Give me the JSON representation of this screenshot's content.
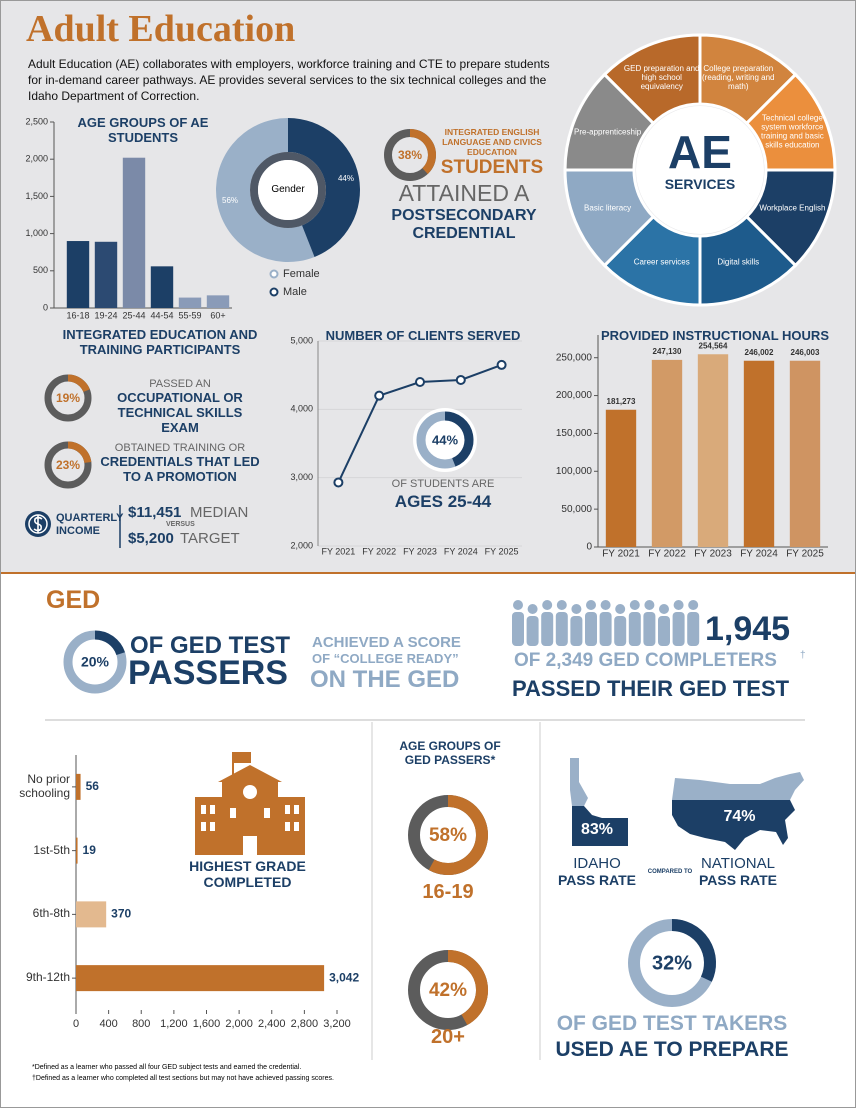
{
  "header": {
    "title": "Adult Education",
    "intro": "Adult Education (AE) collaborates with employers, workforce training and CTE to prepare students for in-demand career pathways. AE provides several services to the six technical colleges and the Idaho Department of Correction."
  },
  "chart_data": [
    {
      "type": "bar",
      "title": "AGE GROUPS OF AE STUDENTS",
      "categories": [
        "16-18",
        "19-24",
        "25-44",
        "44-54",
        "55-59",
        "60+"
      ],
      "values": [
        900,
        890,
        2020,
        560,
        140,
        170
      ],
      "colors": [
        "#1c3f66",
        "#2c4a72",
        "#7b8aa8",
        "#1c3f66",
        "#8a9bb8",
        "#8a9bb8"
      ],
      "ylim": [
        0,
        2500
      ],
      "yticks": [
        0,
        500,
        {
          "value": 1000,
          "label": "1,000"
        },
        {
          "value": 1500,
          "label": "1,500"
        },
        {
          "value": 2000,
          "label": "2,000"
        },
        {
          "value": 2500,
          "label": "2,500"
        }
      ]
    },
    {
      "type": "pie",
      "title": "Gender",
      "categories": [
        "Female",
        "Male"
      ],
      "values": [
        56,
        44
      ],
      "value_labels": [
        "56%",
        "44%"
      ],
      "colors": [
        "#9ab0c8",
        "#1c3f66"
      ]
    },
    {
      "type": "ring",
      "values": [
        38
      ],
      "value_labels": [
        "38%"
      ],
      "ylim": [
        0,
        100
      ],
      "color": "#c0712b",
      "track_color": "#5c5c5c"
    },
    {
      "type": "ring",
      "values": [
        19
      ],
      "value_labels": [
        "19%"
      ],
      "ylim": [
        0,
        100
      ],
      "color": "#c0712b",
      "track_color": "#5c5c5c"
    },
    {
      "type": "ring",
      "values": [
        23
      ],
      "value_labels": [
        "23%"
      ],
      "ylim": [
        0,
        100
      ],
      "color": "#c0712b",
      "track_color": "#5c5c5c"
    },
    {
      "type": "line",
      "title": "NUMBER OF CLIENTS SERVED",
      "categories": [
        "FY 2021",
        "FY 2022",
        "FY 2023",
        "FY 2024",
        "FY 2025"
      ],
      "values": [
        2930,
        4200,
        4400,
        4430,
        4650
      ],
      "color": "#1c3f66",
      "ylim": [
        2000,
        5000
      ],
      "yticks": [
        {
          "value": 2000,
          "label": "2,000"
        },
        {
          "value": 3000,
          "label": "3,000"
        },
        {
          "value": 4000,
          "label": "4,000"
        },
        {
          "value": 5000,
          "label": "5,000"
        }
      ],
      "grid": true
    },
    {
      "type": "ring",
      "values": [
        44
      ],
      "value_labels": [
        "44%"
      ],
      "ylim": [
        0,
        100
      ],
      "color": "#1c3f66",
      "track_color": "#9ab0c8"
    },
    {
      "type": "bar",
      "title": "PROVIDED INSTRUCTIONAL HOURS",
      "categories": [
        "FY 2021",
        "FY 2022",
        "FY 2023",
        "FY 2024",
        "FY 2025"
      ],
      "values": [
        181273,
        247130,
        254564,
        246002,
        246003
      ],
      "value_labels": [
        "181,273",
        "247,130",
        "254,564",
        "246,002",
        "246,003"
      ],
      "colors": [
        "#c0712b",
        "#d29a66",
        "#d9aa7a",
        "#c0712b",
        "#cf9462"
      ],
      "ylim": [
        0,
        280000
      ],
      "yticks": [
        0,
        {
          "value": 50000,
          "label": "50,000"
        },
        {
          "value": 100000,
          "label": "100,000"
        },
        {
          "value": 150000,
          "label": "150,000"
        },
        {
          "value": 200000,
          "label": "200,000"
        },
        {
          "value": 250000,
          "label": "250,000"
        }
      ]
    },
    {
      "type": "ring",
      "values": [
        20
      ],
      "value_labels": [
        "20%"
      ],
      "ylim": [
        0,
        100
      ],
      "color": "#1c3f66",
      "track_color": "#9ab0c8"
    },
    {
      "type": "hbar",
      "title": "HIGHEST GRADE COMPLETED",
      "categories": [
        "No prior schooling",
        "1st-5th",
        "6th-8th",
        "9th-12th"
      ],
      "values": [
        56,
        19,
        370,
        3042
      ],
      "value_labels": [
        "56",
        "19",
        "370",
        "3,042"
      ],
      "colors": [
        "#c0712b",
        "#c0712b",
        "#e3b98f",
        "#c0712b"
      ],
      "xlim": [
        0,
        3200
      ],
      "xticks": [
        0,
        400,
        800,
        {
          "value": 1200,
          "label": "1,200"
        },
        {
          "value": 1600,
          "label": "1,600"
        },
        {
          "value": 2000,
          "label": "2,000"
        },
        {
          "value": 2400,
          "label": "2,400"
        },
        {
          "value": 2800,
          "label": "2,800"
        },
        {
          "value": 3200,
          "label": "3,200"
        }
      ]
    },
    {
      "type": "ring",
      "values": [
        58
      ],
      "value_labels": [
        "58%"
      ],
      "ylim": [
        0,
        100
      ],
      "color": "#c0712b",
      "track_color": "#5c5c5c"
    },
    {
      "type": "ring",
      "values": [
        42
      ],
      "value_labels": [
        "42%"
      ],
      "ylim": [
        0,
        100
      ],
      "color": "#c0712b",
      "track_color": "#5c5c5c"
    },
    {
      "type": "ring",
      "values": [
        32
      ],
      "value_labels": [
        "32%"
      ],
      "ylim": [
        0,
        100
      ],
      "color": "#1c3f66",
      "track_color": "#9ab0c8"
    }
  ],
  "ae_credential": {
    "lines": [
      "INTEGRATED ENGLISH LANGUAGE AND CIVICS EDUCATION",
      "STUDENTS",
      "ATTAINED A",
      "POSTSECONDARY CREDENTIAL"
    ]
  },
  "services": {
    "center": [
      "AE",
      "SERVICES"
    ],
    "segments": [
      {
        "label": "GED preparation and high school equivalency",
        "color": "#b8692a"
      },
      {
        "label": "College preparation (reading, writing and math)",
        "color": "#d1843e"
      },
      {
        "label": "Technical college system workforce training and basic skills education",
        "color": "#eb8f3d"
      },
      {
        "label": "Workplace English",
        "color": "#1c3f66"
      },
      {
        "label": "Digital skills",
        "color": "#1e5b8c"
      },
      {
        "label": "Career services",
        "color": "#2b73a6"
      },
      {
        "label": "Basic literacy",
        "color": "#8fa9c4"
      },
      {
        "label": "Pre-apprenticeship",
        "color": "#8a8a8a"
      }
    ]
  },
  "iet": {
    "title": "INTEGRATED EDUCATION AND TRAINING PARTICIPANTS",
    "items": [
      {
        "lead": "PASSED AN",
        "main": "OCCUPATIONAL OR TECHNICAL SKILLS EXAM"
      },
      {
        "lead": "OBTAINED TRAINING OR",
        "main": "CREDENTIALS THAT LED TO A PROMOTION"
      }
    ],
    "income": {
      "label": "QUARTERLY INCOME",
      "median": "$11,451",
      "median_label": "MEDIAN",
      "versus": "VERSUS",
      "target": "$5,200",
      "target_label": "TARGET"
    }
  },
  "clients_note": {
    "lines": [
      "OF STUDENTS ARE",
      "AGES 25-44"
    ]
  },
  "ged": {
    "heading": "GED",
    "passers": [
      "OF GED TEST",
      "PASSERS"
    ],
    "college_ready": [
      "ACHIEVED A SCORE",
      "OF “COLLEGE READY”",
      "ON THE GED"
    ],
    "completers": {
      "count": "1,945",
      "of": "OF 2,349 GED COMPLETERS",
      "dagger": "†",
      "passed": "PASSED THEIR GED TEST"
    },
    "age_title": "AGE GROUPS OF GED PASSERS*",
    "age_labels": [
      "16-19",
      "20+"
    ],
    "pass_rates": {
      "idaho_value": "83%",
      "idaho_label": [
        "IDAHO",
        "PASS RATE"
      ],
      "compared": "COMPARED TO",
      "national_value": "74%",
      "national_label": [
        "NATIONAL",
        "PASS RATE"
      ]
    },
    "takers": [
      "OF GED TEST TAKERS",
      "USED AE TO PREPARE"
    ],
    "footnotes": [
      "*Defined as a learner who passed all four GED subject tests and earned the credential.",
      "†Defined as a learner who completed all test sections but may not have achieved passing scores."
    ]
  }
}
